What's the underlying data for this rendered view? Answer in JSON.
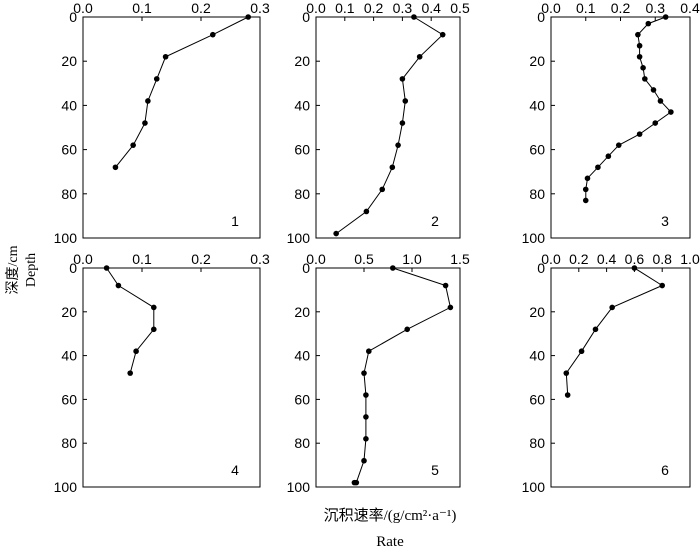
{
  "figure": {
    "ylabel_cn": "深度/cm",
    "ylabel_en": "Depth",
    "xlabel_cn": "沉积速率/(g/cm²·a⁻¹)",
    "xlabel_en": "Rate"
  },
  "chart_data": [
    {
      "type": "line",
      "panel": "1",
      "x_ticks": [
        "0.0",
        "0.1",
        "0.2",
        "0.3"
      ],
      "xlim": [
        0,
        0.3
      ],
      "y_ticks": [
        "0",
        "20",
        "40",
        "60",
        "80",
        "100"
      ],
      "ylim": [
        0,
        100
      ],
      "y_inverted": true,
      "x_axis_position": "top",
      "series": [
        {
          "x": [
            0.28,
            0.22,
            0.14,
            0.125,
            0.11,
            0.105,
            0.085,
            0.055
          ],
          "y": [
            0,
            8,
            18,
            28,
            38,
            48,
            58,
            68
          ]
        }
      ]
    },
    {
      "type": "line",
      "panel": "2",
      "x_ticks": [
        "0.0",
        "0.1",
        "0.2",
        "0.3",
        "0.4",
        "0.5"
      ],
      "xlim": [
        0,
        0.5
      ],
      "y_ticks": [
        "0",
        "20",
        "40",
        "60",
        "80",
        "100"
      ],
      "ylim": [
        0,
        100
      ],
      "y_inverted": true,
      "x_axis_position": "top",
      "series": [
        {
          "x": [
            0.34,
            0.44,
            0.36,
            0.3,
            0.31,
            0.3,
            0.285,
            0.265,
            0.23,
            0.175,
            0.07
          ],
          "y": [
            0,
            8,
            18,
            28,
            38,
            48,
            58,
            68,
            78,
            88,
            98
          ]
        }
      ]
    },
    {
      "type": "line",
      "panel": "3",
      "x_ticks": [
        "0.0",
        "0.1",
        "0.2",
        "0.3",
        "0.4"
      ],
      "xlim": [
        0,
        0.4
      ],
      "y_ticks": [
        "0",
        "20",
        "40",
        "60",
        "80",
        "100"
      ],
      "ylim": [
        0,
        100
      ],
      "y_inverted": true,
      "x_axis_position": "top",
      "series": [
        {
          "x": [
            0.33,
            0.28,
            0.25,
            0.255,
            0.255,
            0.265,
            0.27,
            0.295,
            0.315,
            0.345,
            0.3,
            0.255,
            0.195,
            0.165,
            0.135,
            0.105,
            0.1,
            0.1
          ],
          "y": [
            0,
            3,
            8,
            13,
            18,
            23,
            28,
            33,
            38,
            43,
            48,
            53,
            58,
            63,
            68,
            73,
            78,
            83
          ]
        }
      ]
    },
    {
      "type": "line",
      "panel": "4",
      "x_ticks": [
        "0.0",
        "0.1",
        "0.2",
        "0.3"
      ],
      "xlim": [
        0,
        0.3
      ],
      "y_ticks": [
        "0",
        "20",
        "40",
        "60",
        "80",
        "100"
      ],
      "ylim": [
        0,
        100
      ],
      "y_inverted": true,
      "x_axis_position": "top",
      "series": [
        {
          "x": [
            0.04,
            0.06,
            0.12,
            0.12,
            0.09,
            0.08
          ],
          "y": [
            0,
            8,
            18,
            28,
            38,
            48
          ]
        }
      ]
    },
    {
      "type": "line",
      "panel": "5",
      "x_ticks": [
        "0.0",
        "0.5",
        "1.0",
        "1.5"
      ],
      "xlim": [
        0,
        1.5
      ],
      "y_ticks": [
        "0",
        "20",
        "40",
        "60",
        "80",
        "100"
      ],
      "ylim": [
        0,
        100
      ],
      "y_inverted": true,
      "x_axis_position": "top",
      "series": [
        {
          "x": [
            0.8,
            1.35,
            1.4,
            0.95,
            0.55,
            0.5,
            0.52,
            0.52,
            0.52,
            0.5,
            0.42,
            0.4
          ],
          "y": [
            0,
            8,
            18,
            28,
            38,
            48,
            58,
            68,
            78,
            88,
            98,
            98
          ]
        }
      ]
    },
    {
      "type": "line",
      "panel": "6",
      "x_ticks": [
        "0.0",
        "0.2",
        "0.4",
        "0.6",
        "0.8",
        "1.0"
      ],
      "xlim": [
        0,
        1.0
      ],
      "y_ticks": [
        "0",
        "20",
        "40",
        "60",
        "80",
        "100"
      ],
      "ylim": [
        0,
        100
      ],
      "y_inverted": true,
      "x_axis_position": "top",
      "series": [
        {
          "x": [
            0.6,
            0.8,
            0.44,
            0.32,
            0.22,
            0.11,
            0.12
          ],
          "y": [
            0,
            8,
            18,
            28,
            38,
            48,
            58
          ]
        }
      ]
    }
  ]
}
